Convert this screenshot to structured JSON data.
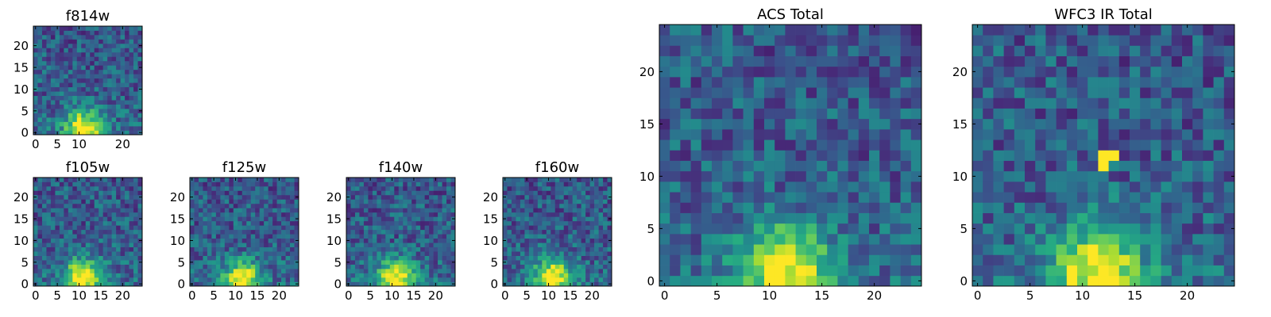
{
  "chart_data": [
    {
      "type": "heatmap",
      "title": "f814w",
      "xticks": [
        0,
        5,
        10,
        20
      ],
      "yticks": [
        0,
        5,
        10,
        15,
        20
      ],
      "extent": [
        -0.5,
        24.5
      ],
      "colormap": "viridis",
      "bright_center": [
        11,
        1
      ]
    },
    {
      "type": "heatmap",
      "title": "f105w",
      "xticks": [
        0,
        5,
        10,
        15,
        20
      ],
      "yticks": [
        0,
        5,
        10,
        15,
        20
      ],
      "extent": [
        -0.5,
        24.5
      ],
      "colormap": "viridis",
      "bright_center": [
        11,
        1.5
      ]
    },
    {
      "type": "heatmap",
      "title": "f125w",
      "xticks": [
        0,
        5,
        10,
        15,
        20
      ],
      "yticks": [
        0,
        5,
        10,
        15,
        20
      ],
      "extent": [
        -0.5,
        24.5
      ],
      "colormap": "viridis",
      "bright_center": [
        11.5,
        1
      ]
    },
    {
      "type": "heatmap",
      "title": "f140w",
      "xticks": [
        0,
        5,
        10,
        15,
        20
      ],
      "yticks": [
        0,
        5,
        10,
        15,
        20
      ],
      "extent": [
        -0.5,
        24.5
      ],
      "colormap": "viridis",
      "bright_center": [
        11,
        1.5
      ]
    },
    {
      "type": "heatmap",
      "title": "f160w",
      "xticks": [
        0,
        5,
        10,
        15,
        20
      ],
      "yticks": [
        0,
        5,
        10,
        15,
        20
      ],
      "extent": [
        -0.5,
        24.5
      ],
      "colormap": "viridis",
      "bright_center": [
        11,
        1.5
      ]
    },
    {
      "type": "heatmap",
      "title": "ACS Total",
      "xticks": [
        0,
        5,
        10,
        15,
        20
      ],
      "yticks": [
        0,
        5,
        10,
        15,
        20
      ],
      "extent": [
        -0.5,
        24.5
      ],
      "colormap": "viridis",
      "bright_center": [
        11.5,
        1
      ]
    },
    {
      "type": "heatmap",
      "title": "WFC3 IR Total",
      "xticks": [
        0,
        5,
        10,
        15,
        20
      ],
      "yticks": [
        0,
        5,
        10,
        15,
        20
      ],
      "extent": [
        -0.5,
        24.5
      ],
      "colormap": "viridis",
      "bright_center": [
        11.5,
        1
      ]
    }
  ]
}
